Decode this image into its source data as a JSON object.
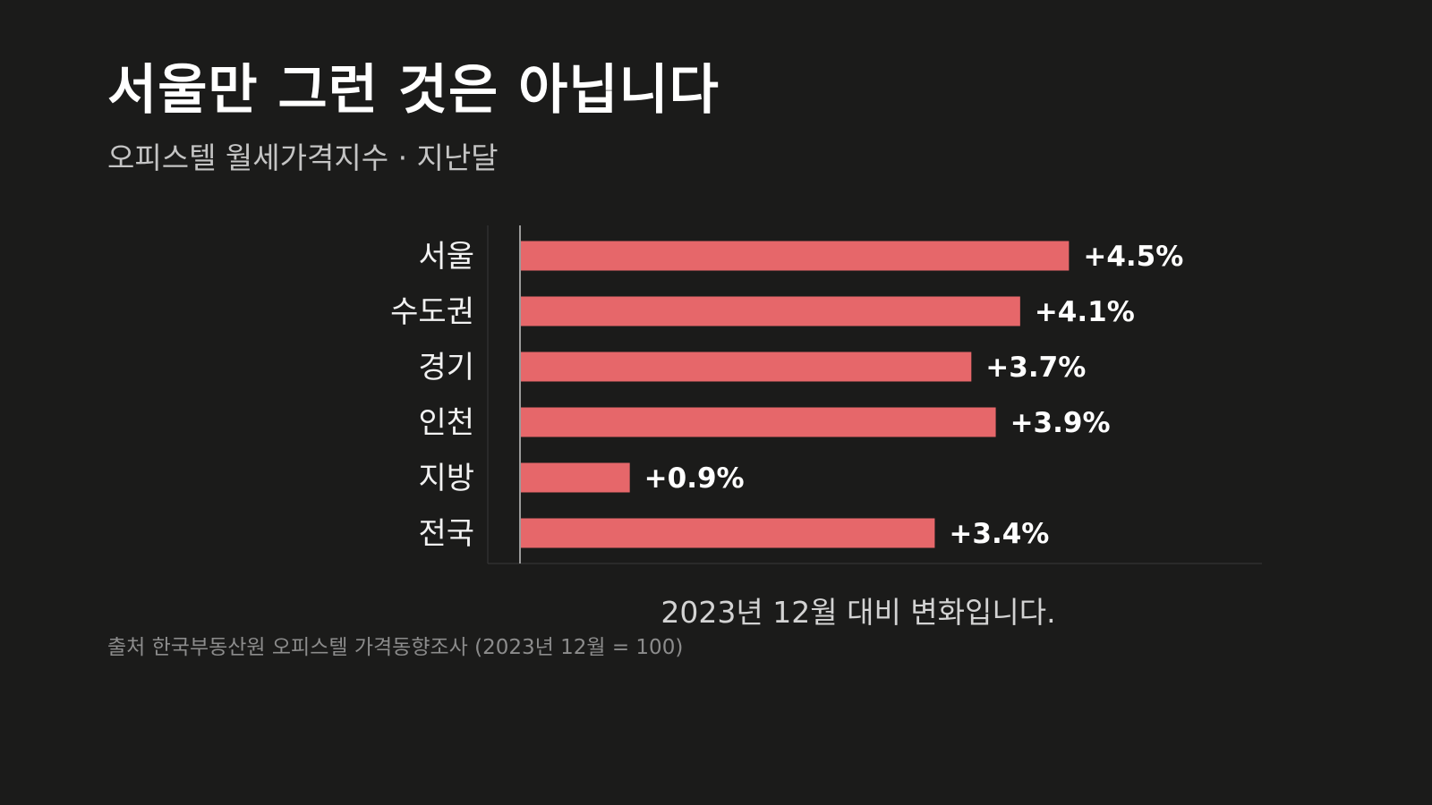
{
  "title": "서울만 그런 것은 아닙니다",
  "subtitle": "오피스텔 월세가격지수 · 지난달",
  "source": "출처 한국부동산원 오피스텔 가격동향조사 (2023년 12월 = 100)",
  "chart_data": {
    "type": "bar",
    "orientation": "horizontal",
    "title": "서울만 그런 것은 아닙니다",
    "subtitle": "오피스텔 월세가격지수 · 지난달",
    "xlabel": "2023년 12월 대비 변화입니다.",
    "ylabel": "",
    "categories": [
      "서울",
      "수도권",
      "경기",
      "인천",
      "지방",
      "전국"
    ],
    "values": [
      4.5,
      4.1,
      3.7,
      3.9,
      0.9,
      3.4
    ],
    "value_labels": [
      "+4.5%",
      "+4.1%",
      "+3.7%",
      "+3.9%",
      "+0.9%",
      "+3.4%"
    ],
    "xlim": [
      0,
      6
    ],
    "bar_color": "#e6676a",
    "grid": false,
    "legend": "none"
  }
}
